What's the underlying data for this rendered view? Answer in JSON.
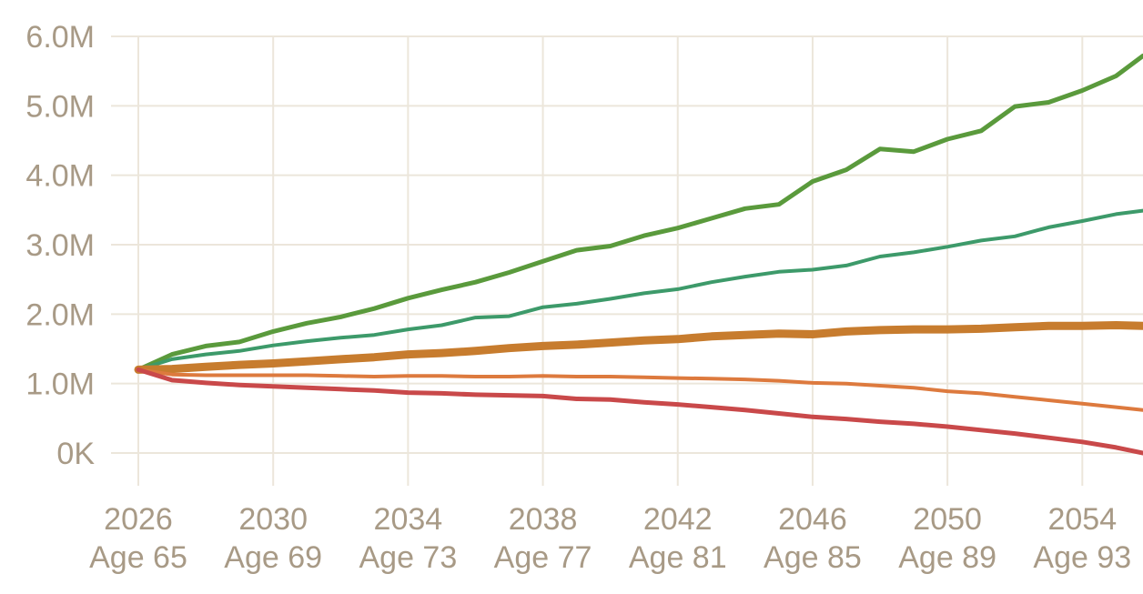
{
  "chart_data": {
    "type": "line",
    "title": "",
    "xlabel": "",
    "ylabel": "",
    "xlim": [
      2026,
      2055.8
    ],
    "ylim": [
      0,
      6000000
    ],
    "grid": true,
    "legend": "none",
    "y_ticks": [
      {
        "value": 0,
        "label": "0K"
      },
      {
        "value": 1000000,
        "label": "1.0M"
      },
      {
        "value": 2000000,
        "label": "2.0M"
      },
      {
        "value": 3000000,
        "label": "3.0M"
      },
      {
        "value": 4000000,
        "label": "4.0M"
      },
      {
        "value": 5000000,
        "label": "5.0M"
      },
      {
        "value": 6000000,
        "label": "6.0M"
      }
    ],
    "x_ticks": [
      {
        "value": 2026,
        "year": "2026",
        "age": "Age 65"
      },
      {
        "value": 2030,
        "year": "2030",
        "age": "Age 69"
      },
      {
        "value": 2034,
        "year": "2034",
        "age": "Age 73"
      },
      {
        "value": 2038,
        "year": "2038",
        "age": "Age 77"
      },
      {
        "value": 2042,
        "year": "2042",
        "age": "Age 81"
      },
      {
        "value": 2046,
        "year": "2046",
        "age": "Age 85"
      },
      {
        "value": 2050,
        "year": "2050",
        "age": "Age 89"
      },
      {
        "value": 2054,
        "year": "2054",
        "age": "Age 93"
      }
    ],
    "x": [
      2026,
      2027,
      2028,
      2029,
      2030,
      2031,
      2032,
      2033,
      2034,
      2035,
      2036,
      2037,
      2038,
      2039,
      2040,
      2041,
      2042,
      2043,
      2044,
      2045,
      2046,
      2047,
      2048,
      2049,
      2050,
      2051,
      2052,
      2053,
      2054,
      2055,
      2055.8
    ],
    "series": [
      {
        "color": "#5a9a3c",
        "width": 5,
        "values": [
          1200000,
          1420000,
          1540000,
          1600000,
          1750000,
          1870000,
          1960000,
          2080000,
          2230000,
          2350000,
          2460000,
          2600000,
          2760000,
          2920000,
          2980000,
          3130000,
          3240000,
          3380000,
          3520000,
          3580000,
          3910000,
          4080000,
          4380000,
          4340000,
          4520000,
          4640000,
          4990000,
          5050000,
          5220000,
          5430000,
          5720000
        ]
      },
      {
        "color": "#3d9a6a",
        "width": 4,
        "values": [
          1200000,
          1350000,
          1420000,
          1470000,
          1550000,
          1610000,
          1660000,
          1700000,
          1780000,
          1840000,
          1950000,
          1970000,
          2100000,
          2150000,
          2220000,
          2300000,
          2360000,
          2460000,
          2540000,
          2610000,
          2640000,
          2700000,
          2830000,
          2890000,
          2970000,
          3060000,
          3120000,
          3250000,
          3340000,
          3440000,
          3490000
        ]
      },
      {
        "color": "#c77c2e",
        "width": 9,
        "values": [
          1200000,
          1210000,
          1240000,
          1270000,
          1290000,
          1320000,
          1350000,
          1380000,
          1420000,
          1440000,
          1470000,
          1510000,
          1540000,
          1560000,
          1590000,
          1620000,
          1640000,
          1680000,
          1700000,
          1720000,
          1710000,
          1750000,
          1770000,
          1780000,
          1780000,
          1790000,
          1810000,
          1830000,
          1830000,
          1840000,
          1830000
        ]
      },
      {
        "color": "#dd7a3e",
        "width": 4,
        "values": [
          1200000,
          1130000,
          1120000,
          1120000,
          1120000,
          1120000,
          1110000,
          1100000,
          1110000,
          1110000,
          1100000,
          1100000,
          1110000,
          1100000,
          1100000,
          1090000,
          1080000,
          1070000,
          1060000,
          1040000,
          1010000,
          1000000,
          970000,
          940000,
          890000,
          860000,
          810000,
          760000,
          710000,
          660000,
          620000
        ]
      },
      {
        "color": "#c9494a",
        "width": 5,
        "values": [
          1200000,
          1050000,
          1010000,
          980000,
          960000,
          940000,
          920000,
          900000,
          870000,
          860000,
          840000,
          830000,
          820000,
          780000,
          770000,
          730000,
          700000,
          660000,
          620000,
          570000,
          520000,
          490000,
          450000,
          420000,
          380000,
          330000,
          280000,
          220000,
          160000,
          80000,
          0
        ]
      }
    ]
  }
}
